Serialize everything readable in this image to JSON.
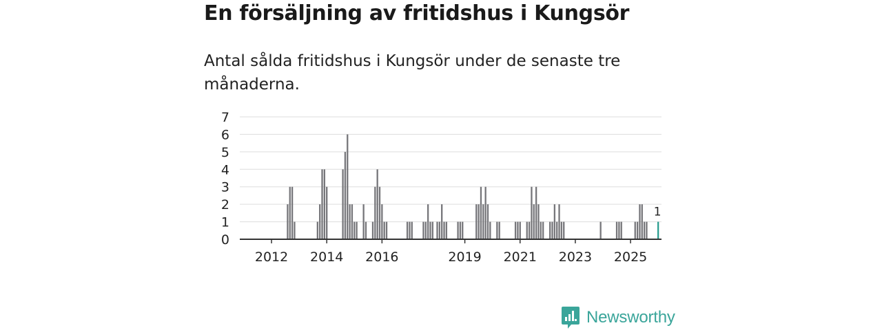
{
  "header": {
    "title": "En försäljning av fritidshus i Kungsör",
    "subtitle": "Antal sålda fritidshus i Kungsör under de senaste tre månaderna."
  },
  "chart_data": {
    "type": "bar",
    "title": "En försäljning av fritidshus i Kungsör",
    "subtitle": "Antal sålda fritidshus i Kungsör under de senaste tre månaderna.",
    "xlabel": "",
    "ylabel": "",
    "ylim": [
      0,
      7
    ],
    "yticks": [
      0,
      1,
      2,
      3,
      4,
      5,
      6,
      7
    ],
    "xticks": [
      {
        "label": "2012",
        "month_index": 6
      },
      {
        "label": "2014",
        "month_index": 30
      },
      {
        "label": "2016",
        "month_index": 54
      },
      {
        "label": "2019",
        "month_index": 90
      },
      {
        "label": "2021",
        "month_index": 114
      },
      {
        "label": "2023",
        "month_index": 138
      },
      {
        "label": "2025",
        "month_index": 162
      }
    ],
    "start": "2011-07",
    "frequency": "monthly (rolling 3-month sum)",
    "values": [
      0,
      0,
      0,
      0,
      0,
      0,
      0,
      0,
      0,
      0,
      0,
      0,
      0,
      2,
      3,
      3,
      1,
      0,
      0,
      0,
      0,
      0,
      0,
      0,
      0,
      0,
      1,
      2,
      4,
      4,
      3,
      0,
      0,
      0,
      0,
      0,
      0,
      4,
      5,
      6,
      2,
      2,
      1,
      1,
      0,
      0,
      2,
      1,
      0,
      0,
      1,
      3,
      4,
      3,
      2,
      1,
      1,
      0,
      0,
      0,
      0,
      0,
      0,
      0,
      0,
      1,
      1,
      1,
      0,
      0,
      0,
      0,
      1,
      1,
      2,
      1,
      1,
      0,
      1,
      1,
      2,
      1,
      1,
      0,
      0,
      0,
      0,
      1,
      1,
      1,
      0,
      0,
      0,
      0,
      0,
      2,
      2,
      3,
      2,
      3,
      2,
      1,
      0,
      0,
      1,
      1,
      0,
      0,
      0,
      0,
      0,
      0,
      1,
      1,
      1,
      0,
      0,
      1,
      1,
      3,
      2,
      3,
      2,
      1,
      1,
      0,
      0,
      1,
      1,
      2,
      1,
      2,
      1,
      1,
      0,
      0,
      0,
      0,
      0,
      0,
      0,
      0,
      0,
      0,
      0,
      0,
      0,
      0,
      0,
      1,
      0,
      0,
      0,
      0,
      0,
      0,
      1,
      1,
      1,
      0,
      0,
      0,
      0,
      0,
      1,
      1,
      2,
      2,
      1,
      1
    ],
    "highlight": {
      "month_index": 174,
      "value": 1,
      "label": "1",
      "color": "#2a9d8f"
    },
    "bar_color": "#76767a",
    "axis_color": "#333333",
    "grid_color": "#dddddd"
  },
  "brand": {
    "name": "Newsworthy",
    "icon": "bar-chart-speech-icon",
    "color": "#3aa59a"
  }
}
